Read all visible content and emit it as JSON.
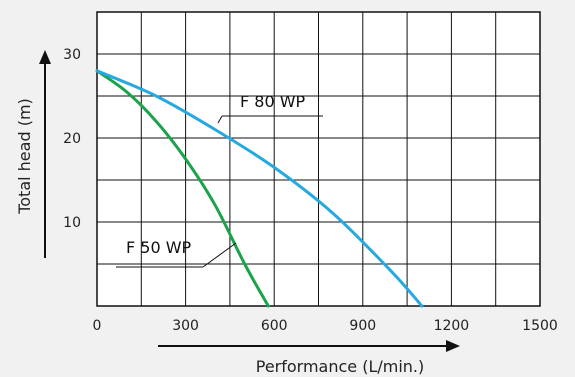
{
  "chart_data": {
    "type": "line",
    "xlabel": "Performance (L/min.)",
    "ylabel": "Total head (m)",
    "xlim": [
      0,
      1500
    ],
    "ylim": [
      0,
      35
    ],
    "grid": true,
    "x_ticks": [
      "0",
      "300",
      "600",
      "900",
      "1200",
      "1500"
    ],
    "y_ticks": [
      "10",
      "20",
      "30"
    ],
    "series": [
      {
        "name": "F 50 WP",
        "color": "#1aa34a",
        "x": [
          0,
          100,
          200,
          300,
          400,
          500,
          580
        ],
        "y": [
          28,
          25.5,
          22,
          17.5,
          12,
          5,
          0
        ]
      },
      {
        "name": "F 80 WP",
        "color": "#26a9e0",
        "x": [
          0,
          200,
          400,
          600,
          800,
          1000,
          1100
        ],
        "y": [
          28,
          25,
          21,
          16.5,
          11,
          4,
          0
        ]
      }
    ]
  }
}
